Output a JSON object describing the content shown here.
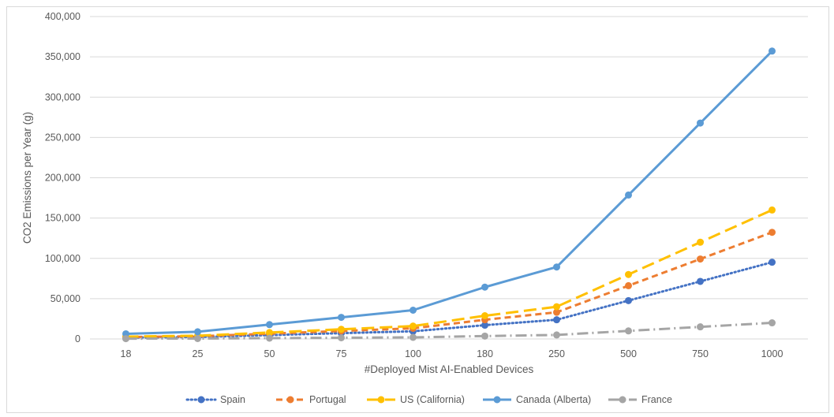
{
  "chart_data": {
    "type": "line",
    "title": "",
    "xlabel": "#Deployed Mist AI-Enabled Devices",
    "ylabel": "CO2 Emissions per Year (g)",
    "categories": [
      "18",
      "25",
      "50",
      "75",
      "100",
      "180",
      "250",
      "500",
      "750",
      "1000"
    ],
    "ylim": [
      0,
      400000
    ],
    "yticks": [
      0,
      50000,
      100000,
      150000,
      200000,
      250000,
      300000,
      350000,
      400000
    ],
    "ytick_labels": [
      "0",
      "50,000",
      "100,000",
      "150,000",
      "200,000",
      "250,000",
      "300,000",
      "350,000",
      "400,000"
    ],
    "grid": true,
    "legend_position": "bottom",
    "series": [
      {
        "name": "Spain",
        "color": "#4472c4",
        "dash": "dotted",
        "values": [
          1700,
          2400,
          4800,
          7200,
          9500,
          17100,
          23800,
          47600,
          71400,
          95200
        ]
      },
      {
        "name": "Portugal",
        "color": "#ed7d31",
        "dash": "dashed",
        "values": [
          2400,
          3300,
          6600,
          9900,
          13200,
          23800,
          33100,
          66100,
          99200,
          132300
        ]
      },
      {
        "name": "US (California)",
        "color": "#ffc000",
        "dash": "long-dash",
        "values": [
          2900,
          4000,
          8000,
          12000,
          16000,
          28800,
          40000,
          80000,
          120000,
          160000
        ]
      },
      {
        "name": "Canada (Alberta)",
        "color": "#5b9bd5",
        "dash": "solid",
        "values": [
          6400,
          8900,
          17800,
          26800,
          35700,
          64300,
          89300,
          178600,
          267900,
          357200
        ]
      },
      {
        "name": "France",
        "color": "#a5a5a5",
        "dash": "dash-dot",
        "values": [
          400,
          500,
          1000,
          1500,
          2000,
          3600,
          5000,
          10000,
          15000,
          20000
        ]
      }
    ]
  }
}
